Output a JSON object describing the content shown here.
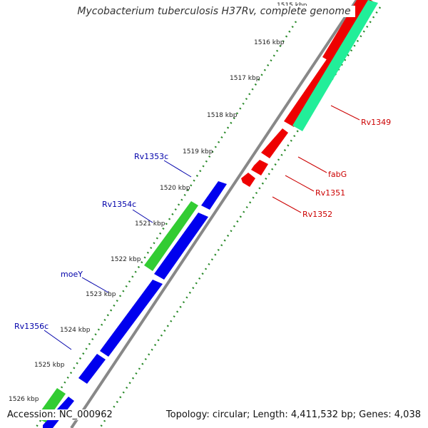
{
  "title": "Mycobacterium tuberculosis H37Rv, complete genome",
  "footer": {
    "accession": "Accession: NC_000962",
    "summary": "Topology: circular; Length: 4,411,532 bp; Genes: 4,038"
  },
  "colors": {
    "backbone": "#888888",
    "tick": "#2a8a2a",
    "cds_reverse": "#0000ee",
    "cds_forward": "#ee0000",
    "rna_reverse": "#33cc33",
    "rna_forward": "#22ee99",
    "label_reverse": "#0000aa",
    "label_forward": "#cc0000"
  },
  "ticks": [
    "1515 kbp",
    "1516 kbp",
    "1517 kbp",
    "1518 kbp",
    "1519 kbp",
    "1520 kbp",
    "1521 kbp",
    "1522 kbp",
    "1523 kbp",
    "1524 kbp",
    "1525 kbp",
    "1526 kbp"
  ],
  "gene_labels": {
    "left": [
      "Rv1353c",
      "Rv1354c",
      "moeY",
      "Rv1356c"
    ],
    "right": [
      "Rv1349",
      "fabG",
      "Rv1351",
      "Rv1352"
    ]
  }
}
